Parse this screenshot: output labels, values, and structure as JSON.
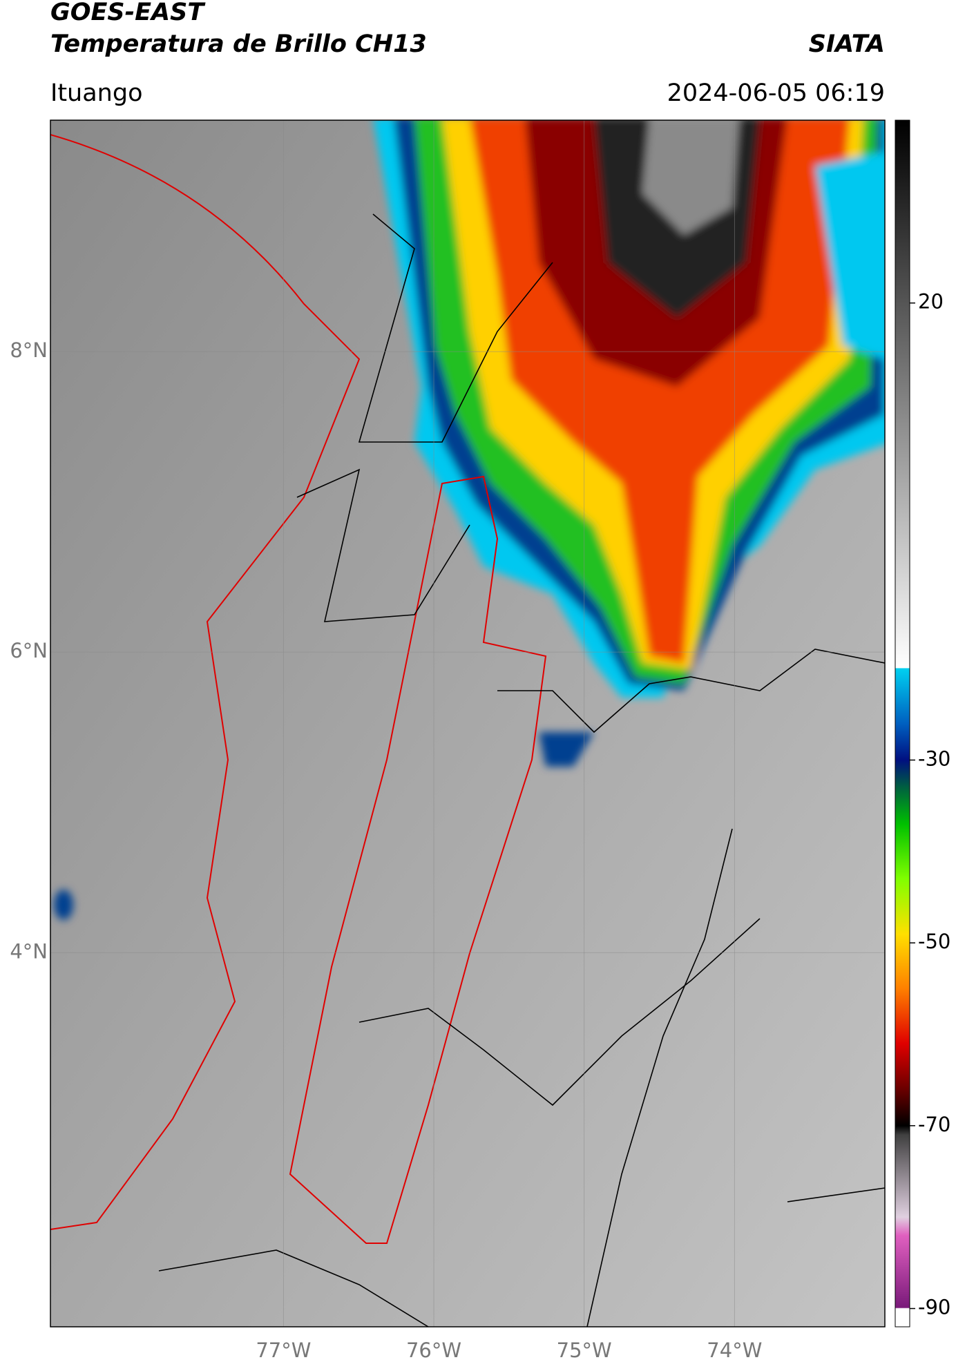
{
  "header": {
    "title": "GOES-EAST",
    "subtitle": "Temperatura de Brillo CH13",
    "agency": "SIATA",
    "location": "Ituango",
    "datetime": "2024-06-05 06:19"
  },
  "chart_data": {
    "type": "map",
    "xlim": [
      -78.55,
      -73.0
    ],
    "ylim": [
      1.51,
      9.54
    ],
    "xticks": [
      {
        "value": -77,
        "label": "77°W"
      },
      {
        "value": -76,
        "label": "76°W"
      },
      {
        "value": -75,
        "label": "75°W"
      },
      {
        "value": -74,
        "label": "74°W"
      }
    ],
    "yticks": [
      {
        "value": 8,
        "label": "8°N"
      },
      {
        "value": 6,
        "label": "6°N"
      },
      {
        "value": 4,
        "label": "4°N"
      }
    ],
    "grid": true,
    "colorbar": {
      "clim": [
        -92,
        40
      ],
      "ticks": [
        20,
        -30,
        -50,
        -70,
        -90
      ],
      "colormap": [
        {
          "value": -92,
          "color": "#ffffff"
        },
        {
          "value": -90,
          "color": "#ffffff"
        },
        {
          "value": -89.9,
          "color": "#7a1a7a"
        },
        {
          "value": -82,
          "color": "#e060c0"
        },
        {
          "value": -80,
          "color": "#e0d0e0"
        },
        {
          "value": -71,
          "color": "#404040"
        },
        {
          "value": -70,
          "color": "#000000"
        },
        {
          "value": -66,
          "color": "#6a0000"
        },
        {
          "value": -61,
          "color": "#e00000"
        },
        {
          "value": -55,
          "color": "#ff8000"
        },
        {
          "value": -49,
          "color": "#ffe000"
        },
        {
          "value": -43,
          "color": "#80ff00"
        },
        {
          "value": -37,
          "color": "#00c000"
        },
        {
          "value": -33,
          "color": "#006040"
        },
        {
          "value": -30,
          "color": "#001080"
        },
        {
          "value": -26,
          "color": "#0060c0"
        },
        {
          "value": -20,
          "color": "#00d0f0"
        },
        {
          "value": -19.9,
          "color": "#ffffff"
        },
        {
          "value": 40,
          "color": "#000000"
        }
      ]
    }
  }
}
